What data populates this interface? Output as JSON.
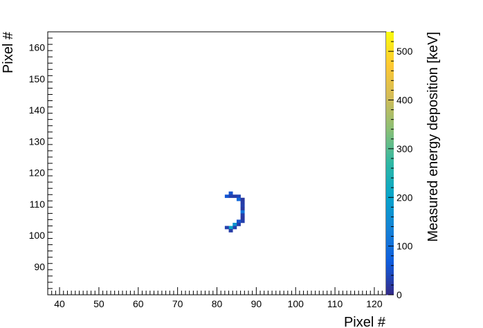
{
  "chart_data": {
    "type": "heatmap",
    "title": "",
    "xlabel": "Pixel #",
    "ylabel": "Pixel #",
    "zlabel": "Measured energy deposition [keV]",
    "xlim": [
      37,
      123
    ],
    "ylim": [
      81,
      165
    ],
    "zlim": [
      0,
      540
    ],
    "grid": false,
    "x_ticks": [
      40,
      50,
      60,
      70,
      80,
      90,
      100,
      110,
      120
    ],
    "y_ticks": [
      90,
      100,
      110,
      120,
      130,
      140,
      150,
      160
    ],
    "z_ticks": [
      0,
      100,
      200,
      300,
      400,
      500
    ],
    "colormap": [
      "#352a87",
      "#0f5cdd",
      "#1481d6",
      "#06a4ca",
      "#2eb7a4",
      "#87bf77",
      "#d1bb59",
      "#fec832",
      "#f9fb0e"
    ],
    "cells": [
      {
        "x": 82,
        "y": 112,
        "z": 60
      },
      {
        "x": 83,
        "y": 113,
        "z": 55
      },
      {
        "x": 83,
        "y": 112,
        "z": 30
      },
      {
        "x": 84,
        "y": 112,
        "z": 25
      },
      {
        "x": 85,
        "y": 112,
        "z": 35
      },
      {
        "x": 85,
        "y": 111,
        "z": 90
      },
      {
        "x": 86,
        "y": 111,
        "z": 20
      },
      {
        "x": 86,
        "y": 110,
        "z": 25
      },
      {
        "x": 86,
        "y": 109,
        "z": 30
      },
      {
        "x": 86,
        "y": 108,
        "z": 20
      },
      {
        "x": 86,
        "y": 107,
        "z": 110
      },
      {
        "x": 86,
        "y": 106,
        "z": 25
      },
      {
        "x": 86,
        "y": 105,
        "z": 20
      },
      {
        "x": 86,
        "y": 104,
        "z": 30
      },
      {
        "x": 85,
        "y": 104,
        "z": 55
      },
      {
        "x": 85,
        "y": 103,
        "z": 25
      },
      {
        "x": 84,
        "y": 103,
        "z": 170
      },
      {
        "x": 84,
        "y": 102,
        "z": 30
      },
      {
        "x": 83,
        "y": 102,
        "z": 210
      },
      {
        "x": 83,
        "y": 101,
        "z": 25
      },
      {
        "x": 82,
        "y": 102,
        "z": 30
      }
    ]
  }
}
